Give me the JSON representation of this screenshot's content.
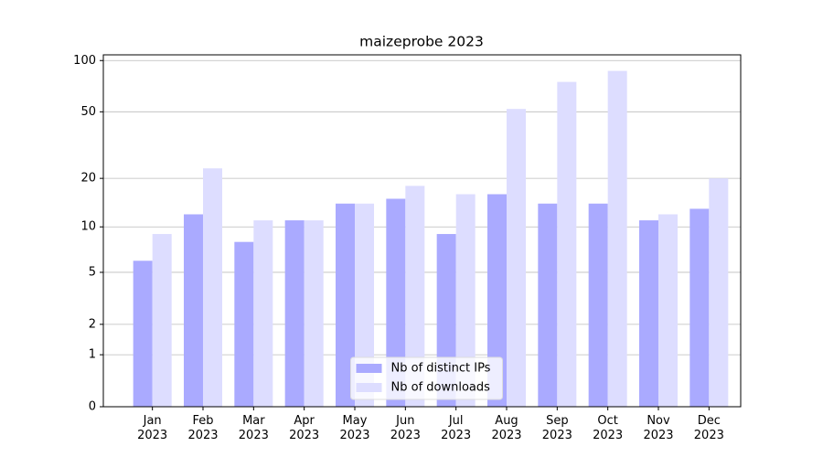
{
  "chart_data": {
    "type": "bar",
    "title": "maizeprobe 2023",
    "yscale": "log1p",
    "categories": [
      "Jan 2023",
      "Feb 2023",
      "Mar 2023",
      "Apr 2023",
      "May 2023",
      "Jun 2023",
      "Jul 2023",
      "Aug 2023",
      "Sep 2023",
      "Oct 2023",
      "Nov 2023",
      "Dec 2023"
    ],
    "series": [
      {
        "name": "Nb of distinct IPs",
        "color": "#aaaaff",
        "values": [
          6,
          12,
          8,
          11,
          14,
          15,
          9,
          16,
          14,
          14,
          11,
          13
        ]
      },
      {
        "name": "Nb of downloads",
        "color": "#ddddff",
        "values": [
          9,
          23,
          11,
          11,
          14,
          18,
          16,
          52,
          75,
          87,
          12,
          20
        ]
      }
    ],
    "ylim": [
      0,
      108
    ],
    "yticks": [
      0,
      1,
      2,
      5,
      10,
      20,
      50,
      100
    ],
    "grid": true,
    "legend": "lower center"
  }
}
